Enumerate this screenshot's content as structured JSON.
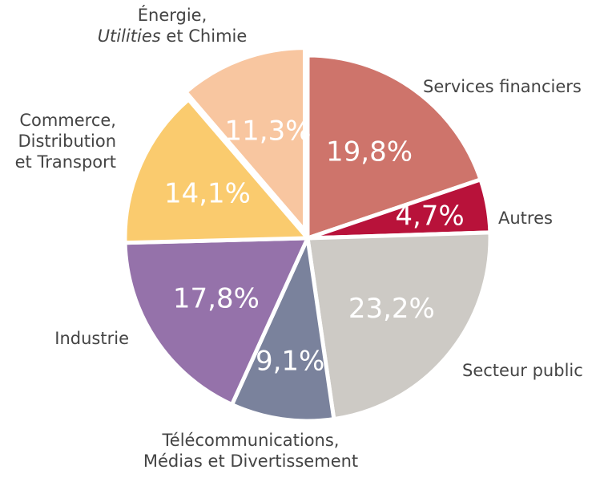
{
  "chart_data": {
    "type": "pie",
    "slices": [
      {
        "label": [
          "Services financiers"
        ],
        "value": 19.8,
        "pct_label": "19,8%",
        "color": "#CE746B"
      },
      {
        "label": [
          "Autres"
        ],
        "value": 4.7,
        "pct_label": "4,7%",
        "color": "#B8123A"
      },
      {
        "label": [
          "Secteur public"
        ],
        "value": 23.2,
        "pct_label": "23,2%",
        "color": "#CDCAC5"
      },
      {
        "label": [
          "Télécommunications,",
          "Médias et Divertissement"
        ],
        "value": 9.1,
        "pct_label": "9,1%",
        "color": "#7A829C"
      },
      {
        "label": [
          "Industrie"
        ],
        "value": 17.8,
        "pct_label": "17,8%",
        "color": "#9572AA"
      },
      {
        "label": [
          "Commerce,",
          "Distribution",
          "et Transport"
        ],
        "value": 14.1,
        "pct_label": "14,1%",
        "color": "#FACB6E"
      },
      {
        "label": [
          "Énergie,",
          "Utilities et Chimie"
        ],
        "value": 11.3,
        "pct_label": "11,3%",
        "color": "#F8C6A0"
      }
    ],
    "italic_words": [
      "Utilities"
    ]
  }
}
